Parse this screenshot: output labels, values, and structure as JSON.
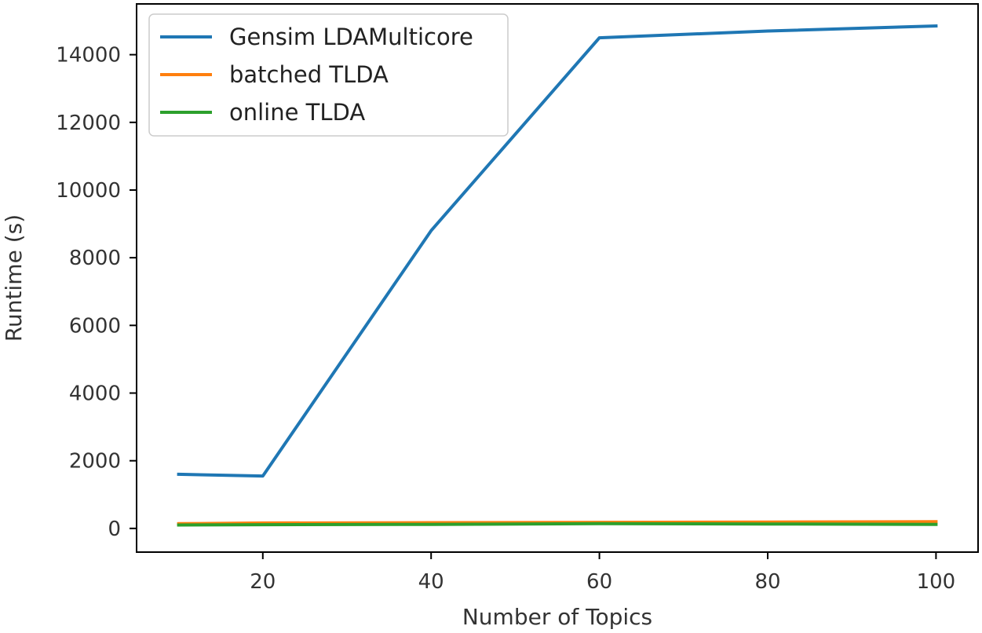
{
  "chart_data": {
    "type": "line",
    "title": "",
    "xlabel": "Number of Topics",
    "ylabel": "Runtime (s)",
    "xlim": [
      5,
      105
    ],
    "ylim": [
      -700,
      15500
    ],
    "xticks": [
      20,
      40,
      60,
      80,
      100
    ],
    "yticks": [
      0,
      2000,
      4000,
      6000,
      8000,
      10000,
      12000,
      14000
    ],
    "grid": false,
    "legend_position": "top-left",
    "series": [
      {
        "name": "Gensim LDAMulticore",
        "color": "#1f77b4",
        "x": [
          10,
          20,
          40,
          60,
          80,
          100
        ],
        "y": [
          1600,
          1550,
          8800,
          14500,
          14700,
          14850
        ]
      },
      {
        "name": "batched TLDA",
        "color": "#ff7f0e",
        "x": [
          10,
          20,
          40,
          60,
          80,
          100
        ],
        "y": [
          140,
          160,
          170,
          180,
          190,
          200
        ]
      },
      {
        "name": "online TLDA",
        "color": "#2ca02c",
        "x": [
          10,
          20,
          40,
          60,
          80,
          100
        ],
        "y": [
          100,
          110,
          120,
          140,
          130,
          120
        ]
      }
    ]
  }
}
